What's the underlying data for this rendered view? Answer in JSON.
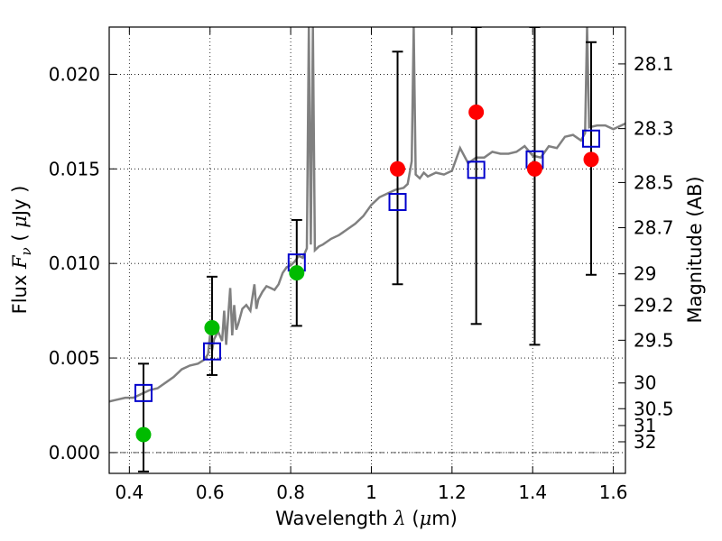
{
  "chart_data": {
    "type": "scatter",
    "title": "",
    "xlabel": {
      "prefix": "Wavelength",
      "symbol": "λ",
      "unit_open": " (",
      "unit_mu": "μ",
      "unit_close": "m)"
    },
    "ylabel": {
      "prefix": "Flux",
      "symbol": "F",
      "sub": "ν",
      "unit_open": " ( ",
      "unit_mu": "μ",
      "unit_close": "Jy )"
    },
    "ylabel_right": "Magnitude (AB)",
    "xlim": [
      0.35,
      1.63
    ],
    "ylim": [
      -0.0011,
      0.0225
    ],
    "grid": true,
    "legend": "none",
    "x_ticks": [
      0.4,
      0.6,
      0.8,
      1.0,
      1.2,
      1.4,
      1.6
    ],
    "x_tick_labels": [
      "0.4",
      "0.6",
      "0.8",
      "1",
      "1.2",
      "1.4",
      "1.6"
    ],
    "y_ticks": [
      0.0,
      0.005,
      0.01,
      0.015,
      0.02
    ],
    "y_tick_labels": [
      "0.000",
      "0.005",
      "0.010",
      "0.015",
      "0.020"
    ],
    "mag_ticks": [
      {
        "label": "28.1",
        "flux": 0.02055
      },
      {
        "label": "28.3",
        "flux": 0.01713
      },
      {
        "label": "28.5",
        "flux": 0.01428
      },
      {
        "label": "28.7",
        "flux": 0.01189
      },
      {
        "label": "29",
        "flux": 0.00945
      },
      {
        "label": "29.2",
        "flux": 0.00778
      },
      {
        "label": "29.5",
        "flux": 0.00594
      },
      {
        "label": "30",
        "flux": 0.00368
      },
      {
        "label": "30.5",
        "flux": 0.00232
      },
      {
        "label": "31",
        "flux": 0.00143
      },
      {
        "label": "32",
        "flux": 0.00057
      }
    ],
    "model_points": {
      "marker": "open-square",
      "color": "#0000cc",
      "x": [
        0.435,
        0.605,
        0.815,
        1.065,
        1.26,
        1.405,
        1.545
      ],
      "y": [
        0.00315,
        0.00535,
        0.01005,
        0.01325,
        0.01495,
        0.0155,
        0.0166
      ]
    },
    "observed_points": [
      {
        "x": 0.435,
        "y": 0.00095,
        "color": "#00bb00",
        "err_low": -0.001,
        "err_high": 0.0047
      },
      {
        "x": 0.605,
        "y": 0.0066,
        "color": "#00bb00",
        "err_low": 0.0041,
        "err_high": 0.0093
      },
      {
        "x": 0.815,
        "y": 0.0095,
        "color": "#00bb00",
        "err_low": 0.0067,
        "err_high": 0.0123
      },
      {
        "x": 1.065,
        "y": 0.015,
        "color": "#ff0000",
        "err_low": 0.0089,
        "err_high": 0.0212
      },
      {
        "x": 1.26,
        "y": 0.018,
        "color": "#ff0000",
        "err_low": 0.0068,
        "err_high": 0.0225
      },
      {
        "x": 1.405,
        "y": 0.015,
        "color": "#ff0000",
        "err_low": 0.0057,
        "err_high": 0.0225
      },
      {
        "x": 1.545,
        "y": 0.0155,
        "color": "#ff0000",
        "err_low": 0.0094,
        "err_high": 0.0217
      }
    ],
    "spectrum": {
      "color": "#808080",
      "x": [
        0.35,
        0.37,
        0.39,
        0.41,
        0.43,
        0.45,
        0.47,
        0.49,
        0.51,
        0.53,
        0.55,
        0.57,
        0.585,
        0.595,
        0.6,
        0.605,
        0.61,
        0.62,
        0.63,
        0.635,
        0.64,
        0.65,
        0.655,
        0.66,
        0.665,
        0.67,
        0.68,
        0.69,
        0.7,
        0.71,
        0.715,
        0.72,
        0.73,
        0.74,
        0.75,
        0.76,
        0.77,
        0.78,
        0.79,
        0.8,
        0.81,
        0.82,
        0.83,
        0.84,
        0.845,
        0.85,
        0.855,
        0.86,
        0.87,
        0.88,
        0.9,
        0.92,
        0.94,
        0.96,
        0.98,
        1.0,
        1.02,
        1.04,
        1.06,
        1.08,
        1.09,
        1.1,
        1.105,
        1.11,
        1.12,
        1.13,
        1.14,
        1.16,
        1.18,
        1.2,
        1.22,
        1.24,
        1.26,
        1.28,
        1.3,
        1.32,
        1.34,
        1.36,
        1.38,
        1.4,
        1.42,
        1.44,
        1.46,
        1.48,
        1.5,
        1.52,
        1.53,
        1.535,
        1.54,
        1.56,
        1.58,
        1.6,
        1.63
      ],
      "y": [
        0.0027,
        0.0028,
        0.0029,
        0.0029,
        0.0031,
        0.0033,
        0.0034,
        0.0037,
        0.004,
        0.0044,
        0.0046,
        0.0047,
        0.0049,
        0.0052,
        0.0062,
        0.0054,
        0.006,
        0.0064,
        0.0059,
        0.0075,
        0.0057,
        0.0087,
        0.0062,
        0.0078,
        0.0065,
        0.0068,
        0.0076,
        0.0078,
        0.0075,
        0.0089,
        0.0076,
        0.0081,
        0.0085,
        0.0088,
        0.0087,
        0.0086,
        0.0089,
        0.0095,
        0.0098,
        0.0099,
        0.0101,
        0.0104,
        0.0103,
        0.0108,
        0.0225,
        0.011,
        0.0225,
        0.0107,
        0.0109,
        0.011,
        0.0113,
        0.0115,
        0.0118,
        0.0121,
        0.0125,
        0.0131,
        0.0135,
        0.0137,
        0.0139,
        0.014,
        0.0142,
        0.0154,
        0.0225,
        0.0147,
        0.0145,
        0.0148,
        0.0146,
        0.0148,
        0.0147,
        0.0149,
        0.0161,
        0.0153,
        0.0156,
        0.0156,
        0.0159,
        0.0158,
        0.0158,
        0.0159,
        0.0162,
        0.0157,
        0.0156,
        0.0162,
        0.0161,
        0.0167,
        0.0168,
        0.0165,
        0.0169,
        0.0225,
        0.0172,
        0.0173,
        0.0173,
        0.0171,
        0.0174
      ]
    }
  }
}
